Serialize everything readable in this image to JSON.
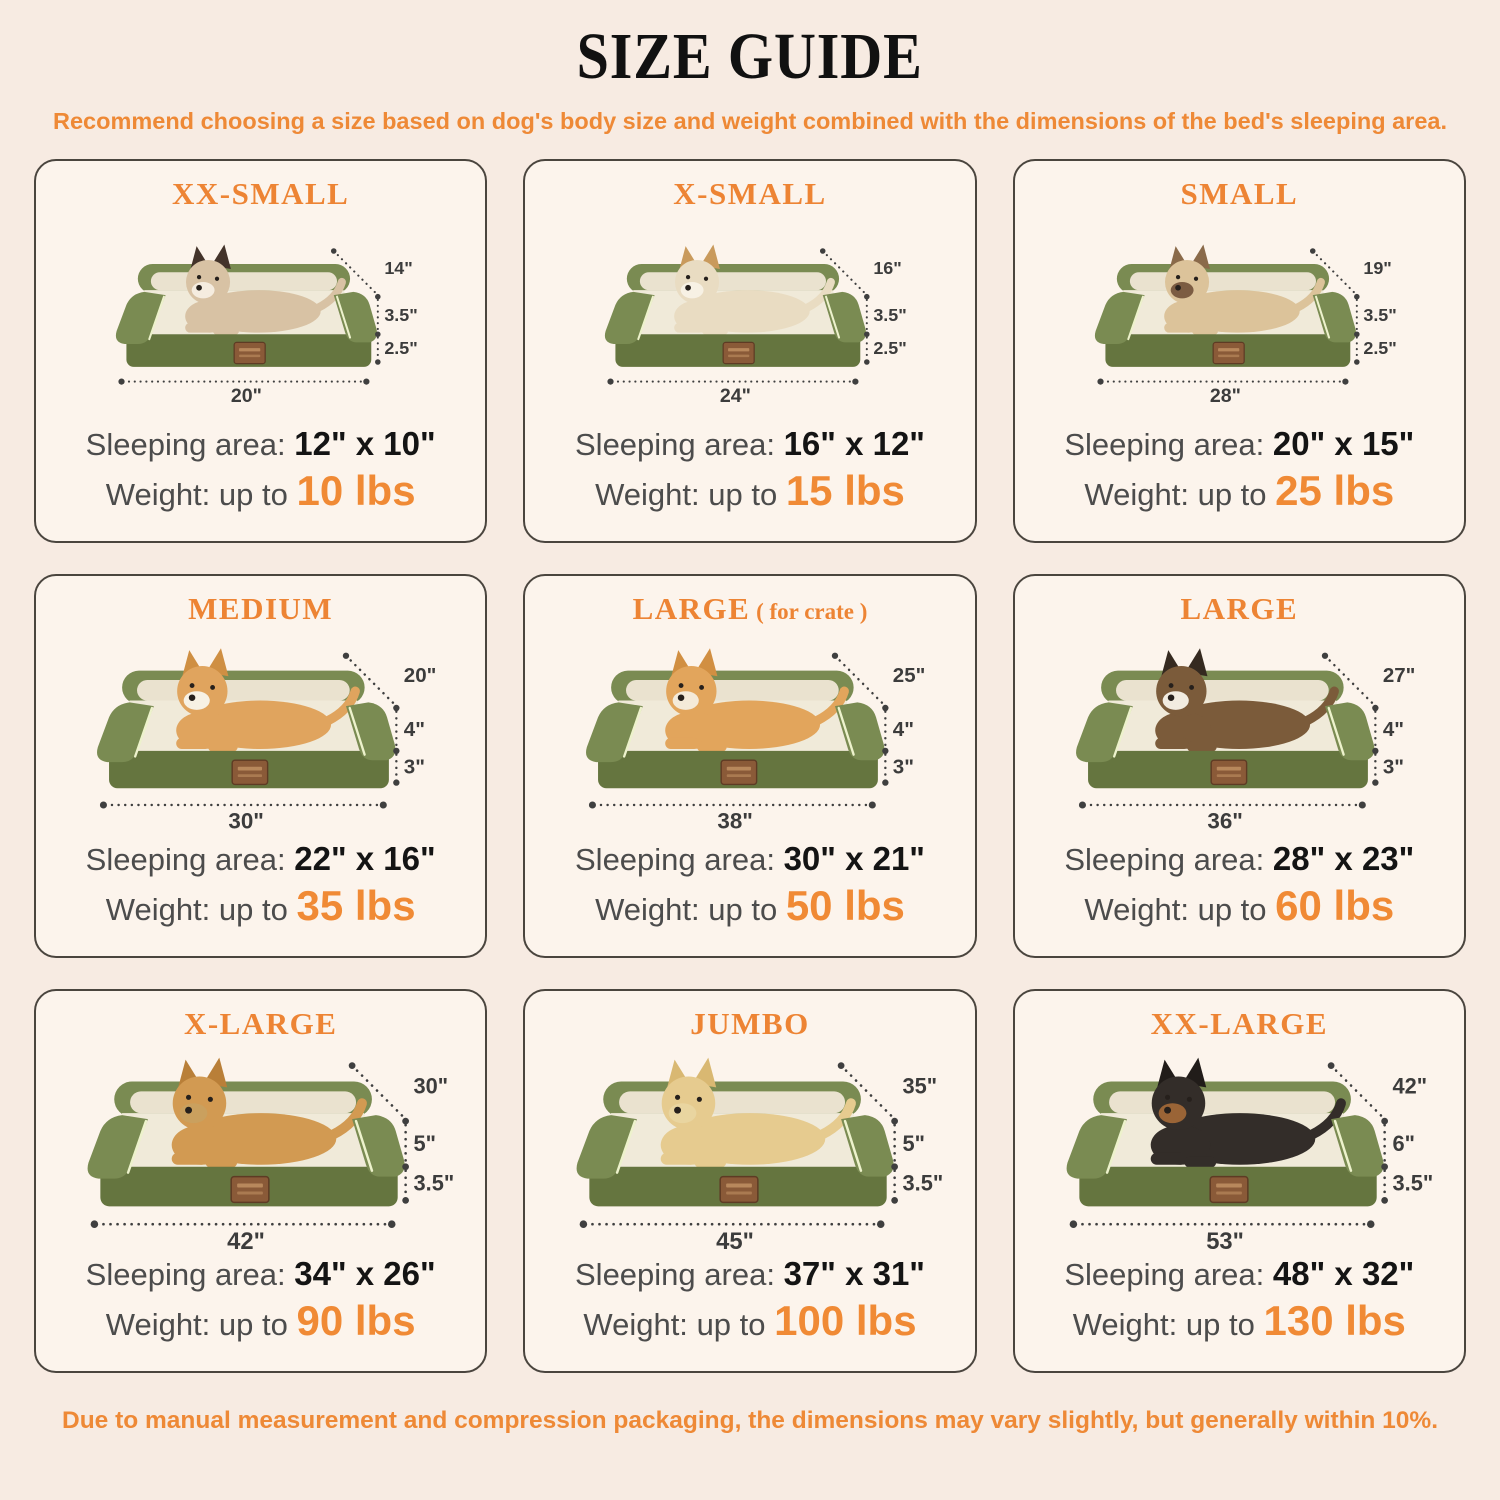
{
  "page": {
    "title": "SIZE GUIDE",
    "subtitle": "Recommend choosing a size based on dog's body size and weight combined with the dimensions of the bed's sleeping area.",
    "footer": "Due to manual measurement and compression packaging, the dimensions may vary slightly, but generally within 10%.",
    "accent_color": "#ee8936",
    "background_color": "#f7ebe2",
    "card_background": "#fcf4ec",
    "bed_green": "#7a8b52",
    "bed_base_green": "#65753f",
    "piping_color": "#edf2cc"
  },
  "labels": {
    "sleeping_area": "Sleeping area:",
    "weight": "Weight:",
    "up_to": "up to"
  },
  "cards": [
    {
      "size": "XX-SMALL",
      "suffix": "",
      "pet": "cat",
      "dims": {
        "depth": "14\"",
        "bolster": "3.5\"",
        "base": "2.5\"",
        "width": "20\""
      },
      "sleeping_area": "12\" x 10\"",
      "weight": "10 lbs",
      "dog": {
        "body": "#d8c2a4",
        "ear": "#43332a",
        "muzzle": "#f5ecdf"
      }
    },
    {
      "size": "X-SMALL",
      "suffix": "",
      "pet": "small-white-dog",
      "dims": {
        "depth": "16\"",
        "bolster": "3.5\"",
        "base": "2.5\"",
        "width": "24\""
      },
      "sleeping_area": "16\" x 12\"",
      "weight": "15 lbs",
      "dog": {
        "body": "#e9dcc2",
        "ear": "#c99a5c",
        "muzzle": "#f7f1e4"
      }
    },
    {
      "size": "SMALL",
      "suffix": "",
      "pet": "french-bulldog",
      "dims": {
        "depth": "19\"",
        "bolster": "3.5\"",
        "base": "2.5\"",
        "width": "28\""
      },
      "sleeping_area": "20\" x 15\"",
      "weight": "25 lbs",
      "dog": {
        "body": "#dcc39a",
        "ear": "#8a6a4a",
        "muzzle": "#7c5c42"
      }
    },
    {
      "size": "MEDIUM",
      "suffix": "",
      "pet": "corgi",
      "dims": {
        "depth": "20\"",
        "bolster": "4\"",
        "base": "3\"",
        "width": "30\""
      },
      "sleeping_area": "22\" x 16\"",
      "weight": "35 lbs",
      "dog": {
        "body": "#e0a45e",
        "ear": "#cf8f43",
        "muzzle": "#f7f1e4"
      }
    },
    {
      "size": "LARGE",
      "suffix": " ( for crate )",
      "pet": "shiba-inu",
      "dims": {
        "depth": "25\"",
        "bolster": "4\"",
        "base": "3\"",
        "width": "38\""
      },
      "sleeping_area": "30\" x 21\"",
      "weight": "50 lbs",
      "dog": {
        "body": "#e2a55c",
        "ear": "#d18f42",
        "muzzle": "#f4ead9"
      }
    },
    {
      "size": "LARGE",
      "suffix": "",
      "pet": "border-collie",
      "dims": {
        "depth": "27\"",
        "bolster": "4\"",
        "base": "3\"",
        "width": "36\""
      },
      "sleeping_area": "28\" x 23\"",
      "weight": "60 lbs",
      "dog": {
        "body": "#7b5b3a",
        "ear": "#352a20",
        "muzzle": "#f2ece0"
      }
    },
    {
      "size": "X-LARGE",
      "suffix": "",
      "pet": "golden-retriever",
      "dims": {
        "depth": "30\"",
        "bolster": "5\"",
        "base": "3.5\"",
        "width": "42\""
      },
      "sleeping_area": "34\" x 26\"",
      "weight": "90 lbs",
      "dog": {
        "body": "#d29a52",
        "ear": "#b97f38",
        "muzzle": "#caa05e"
      }
    },
    {
      "size": "JUMBO",
      "suffix": "",
      "pet": "labrador",
      "dims": {
        "depth": "35\"",
        "bolster": "5\"",
        "base": "3.5\"",
        "width": "45\""
      },
      "sleeping_area": "37\" x 31\"",
      "weight": "100 lbs",
      "dog": {
        "body": "#e6cb8f",
        "ear": "#d9b872",
        "muzzle": "#e9d5a0"
      }
    },
    {
      "size": "XX-LARGE",
      "suffix": "",
      "pet": "rottweiler",
      "dims": {
        "depth": "42\"",
        "bolster": "6\"",
        "base": "3.5\"",
        "width": "53\""
      },
      "sleeping_area": "48\" x 32\"",
      "weight": "130 lbs",
      "dog": {
        "body": "#332d29",
        "ear": "#211c19",
        "muzzle": "#9a6436"
      }
    }
  ]
}
